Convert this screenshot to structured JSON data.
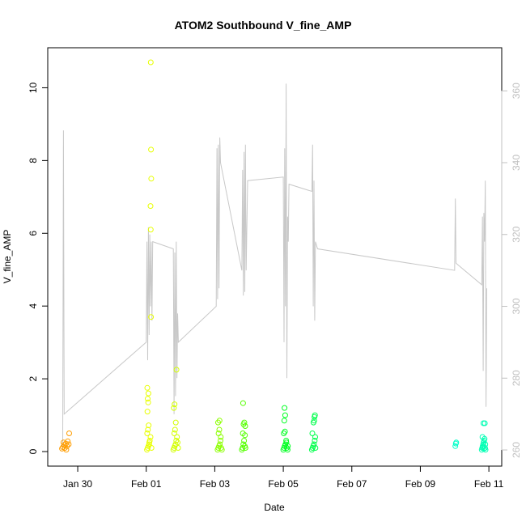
{
  "chart_data": {
    "type": "scatter",
    "title": "ATOM2 Southbound V_fine_AMP",
    "xlabel": "Date",
    "ylabel": "V_fine_AMP",
    "xlim": [
      "2024-01-29T03:00",
      "2024-02-11T09:00"
    ],
    "ylim": [
      -0.4,
      11.1
    ],
    "y2lim": [
      255.5,
      372
    ],
    "x_ticks": [
      {
        "date": "2024-01-30T00:00",
        "label": "Jan 30"
      },
      {
        "date": "2024-02-01T00:00",
        "label": "Feb 01"
      },
      {
        "date": "2024-02-03T00:00",
        "label": "Feb 03"
      },
      {
        "date": "2024-02-05T00:00",
        "label": "Feb 05"
      },
      {
        "date": "2024-02-07T00:00",
        "label": "Feb 07"
      },
      {
        "date": "2024-02-09T00:00",
        "label": "Feb 09"
      },
      {
        "date": "2024-02-11T00:00",
        "label": "Feb 11"
      }
    ],
    "y_ticks": [
      "0",
      "2",
      "4",
      "6",
      "8",
      "10"
    ],
    "y2_ticks": [
      "260",
      "280",
      "300",
      "320",
      "340",
      "360"
    ],
    "grid": false,
    "legend": "none",
    "colors": {
      "line": "#c8c8c8",
      "axis": "#000000",
      "right_axis": "#c0c0c0"
    },
    "series": [
      {
        "color": "#ff9d00",
        "points": [
          [
            "2024-01-29T13:00",
            0.08
          ],
          [
            "2024-01-29T13:40",
            0.12
          ],
          [
            "2024-01-29T14:30",
            0.18
          ],
          [
            "2024-01-29T15:00",
            0.1
          ],
          [
            "2024-01-29T15:40",
            0.22
          ],
          [
            "2024-01-29T16:30",
            0.15
          ],
          [
            "2024-01-29T17:00",
            0.28
          ],
          [
            "2024-01-29T17:40",
            0.2
          ],
          [
            "2024-01-29T18:00",
            0.5
          ],
          [
            "2024-01-29T14:00",
            0.25
          ],
          [
            "2024-01-29T16:00",
            0.05
          ]
        ]
      },
      {
        "color": "#e8ff00",
        "points": [
          [
            "2024-02-01T00:30",
            0.05
          ],
          [
            "2024-02-01T01:00",
            0.1
          ],
          [
            "2024-02-01T01:30",
            0.15
          ],
          [
            "2024-02-01T02:00",
            0.2
          ],
          [
            "2024-02-01T02:30",
            0.3
          ],
          [
            "2024-02-01T03:00",
            0.4
          ],
          [
            "2024-02-01T00:40",
            0.5
          ],
          [
            "2024-02-01T01:10",
            0.6
          ],
          [
            "2024-02-01T01:40",
            0.72
          ],
          [
            "2024-02-01T00:50",
            1.1
          ],
          [
            "2024-02-01T01:20",
            1.35
          ],
          [
            "2024-02-01T01:00",
            1.45
          ],
          [
            "2024-02-01T01:30",
            1.6
          ],
          [
            "2024-02-01T00:45",
            1.75
          ],
          [
            "2024-02-01T03:20",
            3.7
          ],
          [
            "2024-02-01T03:10",
            6.1
          ],
          [
            "2024-02-01T03:00",
            6.75
          ],
          [
            "2024-02-01T03:30",
            7.5
          ],
          [
            "2024-02-01T03:20",
            8.3
          ],
          [
            "2024-02-01T03:10",
            10.7
          ],
          [
            "2024-02-01T02:10",
            0.25
          ],
          [
            "2024-02-01T03:40",
            0.1
          ]
        ]
      },
      {
        "color": "#d4ff00",
        "points": [
          [
            "2024-02-01T19:00",
            0.05
          ],
          [
            "2024-02-01T19:30",
            0.1
          ],
          [
            "2024-02-01T20:00",
            0.15
          ],
          [
            "2024-02-01T20:30",
            0.2
          ],
          [
            "2024-02-01T21:00",
            0.3
          ],
          [
            "2024-02-01T21:30",
            0.4
          ],
          [
            "2024-02-01T22:00",
            0.25
          ],
          [
            "2024-02-01T19:40",
            0.5
          ],
          [
            "2024-02-01T20:40",
            0.8
          ],
          [
            "2024-02-01T19:20",
            1.2
          ],
          [
            "2024-02-01T19:50",
            1.3
          ],
          [
            "2024-02-01T21:10",
            2.25
          ],
          [
            "2024-02-01T22:20",
            0.1
          ],
          [
            "2024-02-01T20:10",
            0.6
          ]
        ]
      },
      {
        "color": "#8cff00",
        "points": [
          [
            "2024-02-03T02:00",
            0.05
          ],
          [
            "2024-02-03T02:30",
            0.1
          ],
          [
            "2024-02-03T03:00",
            0.15
          ],
          [
            "2024-02-03T03:30",
            0.2
          ],
          [
            "2024-02-03T04:00",
            0.3
          ],
          [
            "2024-02-03T04:30",
            0.1
          ],
          [
            "2024-02-03T05:00",
            0.05
          ],
          [
            "2024-02-03T02:40",
            0.5
          ],
          [
            "2024-02-03T03:10",
            0.6
          ],
          [
            "2024-02-03T02:20",
            0.8
          ],
          [
            "2024-02-03T03:20",
            0.85
          ],
          [
            "2024-02-03T04:10",
            0.4
          ]
        ]
      },
      {
        "color": "#55ff00",
        "points": [
          [
            "2024-02-03T19:00",
            0.05
          ],
          [
            "2024-02-03T19:30",
            0.1
          ],
          [
            "2024-02-03T20:00",
            0.2
          ],
          [
            "2024-02-03T20:30",
            0.3
          ],
          [
            "2024-02-03T21:00",
            0.15
          ],
          [
            "2024-02-03T21:30",
            0.1
          ],
          [
            "2024-02-03T19:40",
            0.5
          ],
          [
            "2024-02-03T20:10",
            0.75
          ],
          [
            "2024-02-03T20:40",
            0.8
          ],
          [
            "2024-02-03T21:20",
            0.7
          ],
          [
            "2024-02-03T19:50",
            1.33
          ],
          [
            "2024-02-03T21:10",
            0.45
          ]
        ]
      },
      {
        "color": "#00ff22",
        "points": [
          [
            "2024-02-05T00:00",
            0.05
          ],
          [
            "2024-02-05T00:30",
            0.1
          ],
          [
            "2024-02-05T01:00",
            0.15
          ],
          [
            "2024-02-05T01:30",
            0.2
          ],
          [
            "2024-02-05T02:00",
            0.3
          ],
          [
            "2024-02-05T02:30",
            0.1
          ],
          [
            "2024-02-05T03:00",
            0.05
          ],
          [
            "2024-02-05T00:20",
            0.5
          ],
          [
            "2024-02-05T01:10",
            0.55
          ],
          [
            "2024-02-05T00:40",
            0.85
          ],
          [
            "2024-02-05T01:20",
            1.0
          ],
          [
            "2024-02-05T00:50",
            1.2
          ],
          [
            "2024-02-05T02:10",
            0.25
          ],
          [
            "2024-02-05T03:10",
            0.15
          ]
        ]
      },
      {
        "color": "#00ff4c",
        "points": [
          [
            "2024-02-05T20:00",
            0.05
          ],
          [
            "2024-02-05T20:30",
            0.1
          ],
          [
            "2024-02-05T21:00",
            0.15
          ],
          [
            "2024-02-05T21:30",
            0.2
          ],
          [
            "2024-02-05T22:00",
            0.3
          ],
          [
            "2024-02-05T22:30",
            0.1
          ],
          [
            "2024-02-05T20:20",
            0.5
          ],
          [
            "2024-02-05T21:10",
            0.8
          ],
          [
            "2024-02-05T21:40",
            0.85
          ],
          [
            "2024-02-05T21:50",
            0.95
          ],
          [
            "2024-02-05T22:10",
            1.0
          ],
          [
            "2024-02-05T22:20",
            0.4
          ]
        ]
      },
      {
        "color": "#00ffc8",
        "points": [
          [
            "2024-02-10T00:30",
            0.15
          ],
          [
            "2024-02-10T00:50",
            0.22
          ],
          [
            "2024-02-10T01:10",
            0.25
          ]
        ]
      },
      {
        "color": "#00ffb4",
        "points": [
          [
            "2024-02-10T19:00",
            0.05
          ],
          [
            "2024-02-10T19:20",
            0.1
          ],
          [
            "2024-02-10T19:40",
            0.15
          ],
          [
            "2024-02-10T20:00",
            0.2
          ],
          [
            "2024-02-10T20:20",
            0.25
          ],
          [
            "2024-02-10T20:40",
            0.3
          ],
          [
            "2024-02-10T21:00",
            0.35
          ],
          [
            "2024-02-10T21:20",
            0.1
          ],
          [
            "2024-02-10T21:40",
            0.05
          ],
          [
            "2024-02-10T19:30",
            0.4
          ],
          [
            "2024-02-10T20:10",
            0.78
          ],
          [
            "2024-02-10T21:10",
            0.78
          ],
          [
            "2024-02-10T19:50",
            0.12
          ],
          [
            "2024-02-10T20:30",
            0.08
          ],
          [
            "2024-02-10T21:30",
            0.2
          ]
        ]
      }
    ],
    "secondary_line": {
      "color": "#c8c8c8",
      "points": [
        [
          "2024-01-29T13:30",
          260
        ],
        [
          "2024-01-29T14:00",
          349
        ],
        [
          "2024-01-29T14:30",
          270
        ],
        [
          "2024-02-01T00:00",
          290
        ],
        [
          "2024-02-01T00:30",
          318
        ],
        [
          "2024-02-01T01:00",
          285
        ],
        [
          "2024-02-01T01:30",
          322
        ],
        [
          "2024-02-01T02:00",
          292
        ],
        [
          "2024-02-01T02:30",
          320
        ],
        [
          "2024-02-01T03:00",
          300
        ],
        [
          "2024-02-01T03:30",
          318
        ],
        [
          "2024-02-01T04:00",
          296
        ],
        [
          "2024-02-01T04:30",
          318
        ],
        [
          "2024-02-01T19:00",
          316
        ],
        [
          "2024-02-01T19:30",
          270
        ],
        [
          "2024-02-01T20:00",
          315
        ],
        [
          "2024-02-01T20:30",
          275
        ],
        [
          "2024-02-01T21:00",
          318
        ],
        [
          "2024-02-01T21:30",
          280
        ],
        [
          "2024-02-01T22:00",
          298
        ],
        [
          "2024-02-01T22:30",
          290
        ],
        [
          "2024-02-03T01:00",
          300
        ],
        [
          "2024-02-03T01:30",
          344
        ],
        [
          "2024-02-03T02:00",
          302
        ],
        [
          "2024-02-03T02:30",
          345
        ],
        [
          "2024-02-03T03:00",
          305
        ],
        [
          "2024-02-03T03:30",
          347
        ],
        [
          "2024-02-03T04:00",
          340
        ],
        [
          "2024-02-03T19:00",
          310
        ],
        [
          "2024-02-03T19:30",
          338
        ],
        [
          "2024-02-03T20:00",
          303
        ],
        [
          "2024-02-03T20:30",
          343
        ],
        [
          "2024-02-03T21:00",
          304
        ],
        [
          "2024-02-03T21:30",
          345
        ],
        [
          "2024-02-03T22:00",
          310
        ],
        [
          "2024-02-03T23:00",
          335
        ],
        [
          "2024-02-05T00:00",
          336
        ],
        [
          "2024-02-05T00:30",
          290
        ],
        [
          "2024-02-05T01:00",
          344
        ],
        [
          "2024-02-05T01:30",
          300
        ],
        [
          "2024-02-05T02:00",
          362
        ],
        [
          "2024-02-05T02:30",
          280
        ],
        [
          "2024-02-05T03:00",
          325
        ],
        [
          "2024-02-05T03:30",
          318
        ],
        [
          "2024-02-05T04:00",
          334
        ],
        [
          "2024-02-05T20:00",
          332
        ],
        [
          "2024-02-05T20:30",
          345
        ],
        [
          "2024-02-05T21:00",
          300
        ],
        [
          "2024-02-05T21:30",
          335
        ],
        [
          "2024-02-05T22:00",
          296
        ],
        [
          "2024-02-05T22:30",
          318
        ],
        [
          "2024-02-06T00:00",
          316
        ],
        [
          "2024-02-10T00:00",
          310
        ],
        [
          "2024-02-10T00:30",
          330
        ],
        [
          "2024-02-10T01:00",
          312
        ],
        [
          "2024-02-10T19:00",
          306
        ],
        [
          "2024-02-10T19:30",
          325
        ],
        [
          "2024-02-10T20:00",
          282
        ],
        [
          "2024-02-10T20:30",
          326
        ],
        [
          "2024-02-10T21:00",
          318
        ],
        [
          "2024-02-10T21:30",
          335
        ],
        [
          "2024-02-10T22:00",
          272
        ],
        [
          "2024-02-10T22:30",
          305
        ]
      ]
    }
  }
}
